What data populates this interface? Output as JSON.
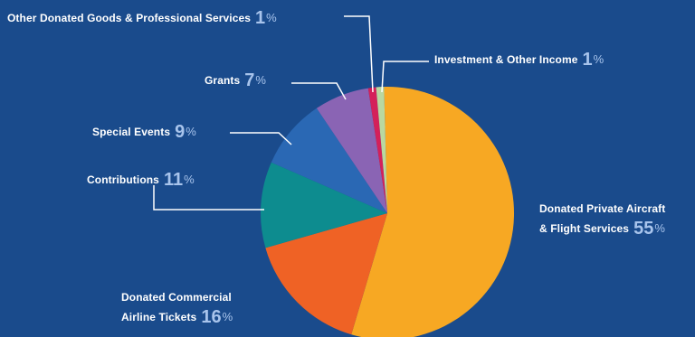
{
  "chart_data": {
    "type": "pie",
    "title": "",
    "slices": [
      {
        "label": "Donated Private Aircraft & Flight Services",
        "line1": "Donated Private Aircraft",
        "line2": "& Flight Services",
        "value": 55,
        "color": "#f7a823"
      },
      {
        "label": "Donated Commercial Airline Tickets",
        "line1": "Donated Commercial",
        "line2": "Airline Tickets",
        "value": 16,
        "color": "#ef6225"
      },
      {
        "label": "Contributions",
        "value": 11,
        "color": "#0d8c8f"
      },
      {
        "label": "Special Events",
        "value": 9,
        "color": "#2a68b4"
      },
      {
        "label": "Grants",
        "value": 7,
        "color": "#8a64b4"
      },
      {
        "label": "Other Donated Goods & Professional Services",
        "value": 1,
        "color": "#d4205a"
      },
      {
        "label": "Investment & Other Income",
        "value": 1,
        "color": "#b9d8a0"
      }
    ],
    "percent_sign": "%"
  }
}
